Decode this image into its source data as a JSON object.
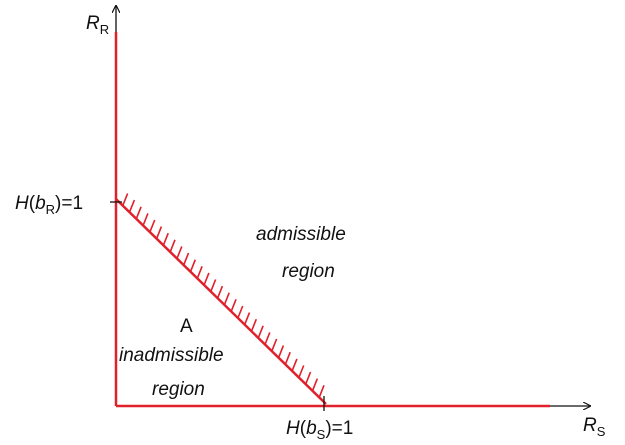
{
  "axes": {
    "y_label": {
      "main": "R",
      "sub": "R"
    },
    "x_label": {
      "main": "R",
      "sub": "S"
    }
  },
  "ticks": {
    "y_tick": {
      "prefix": "H(",
      "var": "b",
      "sub": "R",
      "suffix": ")=1"
    },
    "x_tick": {
      "prefix": "H(",
      "var": "b",
      "sub": "S",
      "suffix": ")=1"
    }
  },
  "regions": {
    "admissible_line1": "admissible",
    "admissible_line2": "region",
    "inadmissible_line1": "inadmissible",
    "inadmissible_line2": "region",
    "point_label": "A"
  },
  "colors": {
    "boundary": "#e0202a",
    "axis": "#111111",
    "point_label": "#2a7ab8"
  }
}
